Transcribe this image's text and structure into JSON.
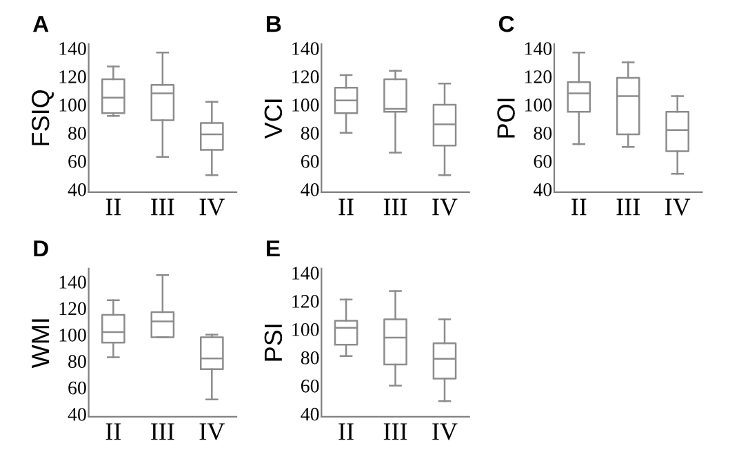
{
  "chart_data": [
    {
      "type": "box",
      "title": "A",
      "ylabel": "FSIQ",
      "categories": [
        "II",
        "III",
        "IV"
      ],
      "color": "#8c8c8c",
      "ylim": [
        38,
        143
      ],
      "yticks": [
        40,
        60,
        80,
        100,
        120,
        140
      ],
      "boxes": [
        {
          "low": 92,
          "q1": 94,
          "median": 105,
          "q3": 118,
          "high": 127
        },
        {
          "low": 63,
          "q1": 89,
          "median": 108,
          "q3": 114,
          "high": 137
        },
        {
          "low": 50,
          "q1": 68,
          "median": 79,
          "q3": 87,
          "high": 102
        }
      ]
    },
    {
      "type": "box",
      "title": "B",
      "ylabel": "VCI",
      "categories": [
        "II",
        "III",
        "IV"
      ],
      "color": "#8c8c8c",
      "ylim": [
        38,
        143
      ],
      "yticks": [
        40,
        60,
        80,
        100,
        120,
        140
      ],
      "boxes": [
        {
          "low": 80,
          "q1": 94,
          "median": 103,
          "q3": 112,
          "high": 121
        },
        {
          "low": 66,
          "q1": 95,
          "median": 97,
          "q3": 118,
          "high": 124
        },
        {
          "low": 50,
          "q1": 71,
          "median": 86,
          "q3": 100,
          "high": 115
        }
      ]
    },
    {
      "type": "box",
      "title": "C",
      "ylabel": "POI",
      "categories": [
        "II",
        "III",
        "IV"
      ],
      "color": "#8c8c8c",
      "ylim": [
        38,
        143
      ],
      "yticks": [
        40,
        60,
        80,
        100,
        120,
        140
      ],
      "boxes": [
        {
          "low": 72,
          "q1": 95,
          "median": 108,
          "q3": 116,
          "high": 137
        },
        {
          "low": 70,
          "q1": 79,
          "median": 106,
          "q3": 119,
          "high": 130
        },
        {
          "low": 51,
          "q1": 67,
          "median": 82,
          "q3": 95,
          "high": 106
        }
      ]
    },
    {
      "type": "box",
      "title": "D",
      "ylabel": "WMI",
      "categories": [
        "II",
        "III",
        "IV"
      ],
      "color": "#8c8c8c",
      "ylim": [
        38,
        150
      ],
      "yticks": [
        40,
        60,
        80,
        100,
        120,
        140
      ],
      "boxes": [
        {
          "low": 83,
          "q1": 94,
          "median": 102,
          "q3": 115,
          "high": 126
        },
        {
          "low": 98,
          "q1": 98,
          "median": 110,
          "q3": 117,
          "high": 145
        },
        {
          "low": 51,
          "q1": 74,
          "median": 82,
          "q3": 98,
          "high": 100
        }
      ]
    },
    {
      "type": "box",
      "title": "E",
      "ylabel": "PSI",
      "categories": [
        "II",
        "III",
        "IV"
      ],
      "color": "#8c8c8c",
      "ylim": [
        38,
        143
      ],
      "yticks": [
        40,
        60,
        80,
        100,
        120,
        140
      ],
      "boxes": [
        {
          "low": 81,
          "q1": 89,
          "median": 101,
          "q3": 106,
          "high": 121
        },
        {
          "low": 60,
          "q1": 75,
          "median": 94,
          "q3": 107,
          "high": 127
        },
        {
          "low": 49,
          "q1": 65,
          "median": 79,
          "q3": 90,
          "high": 107
        }
      ]
    }
  ]
}
